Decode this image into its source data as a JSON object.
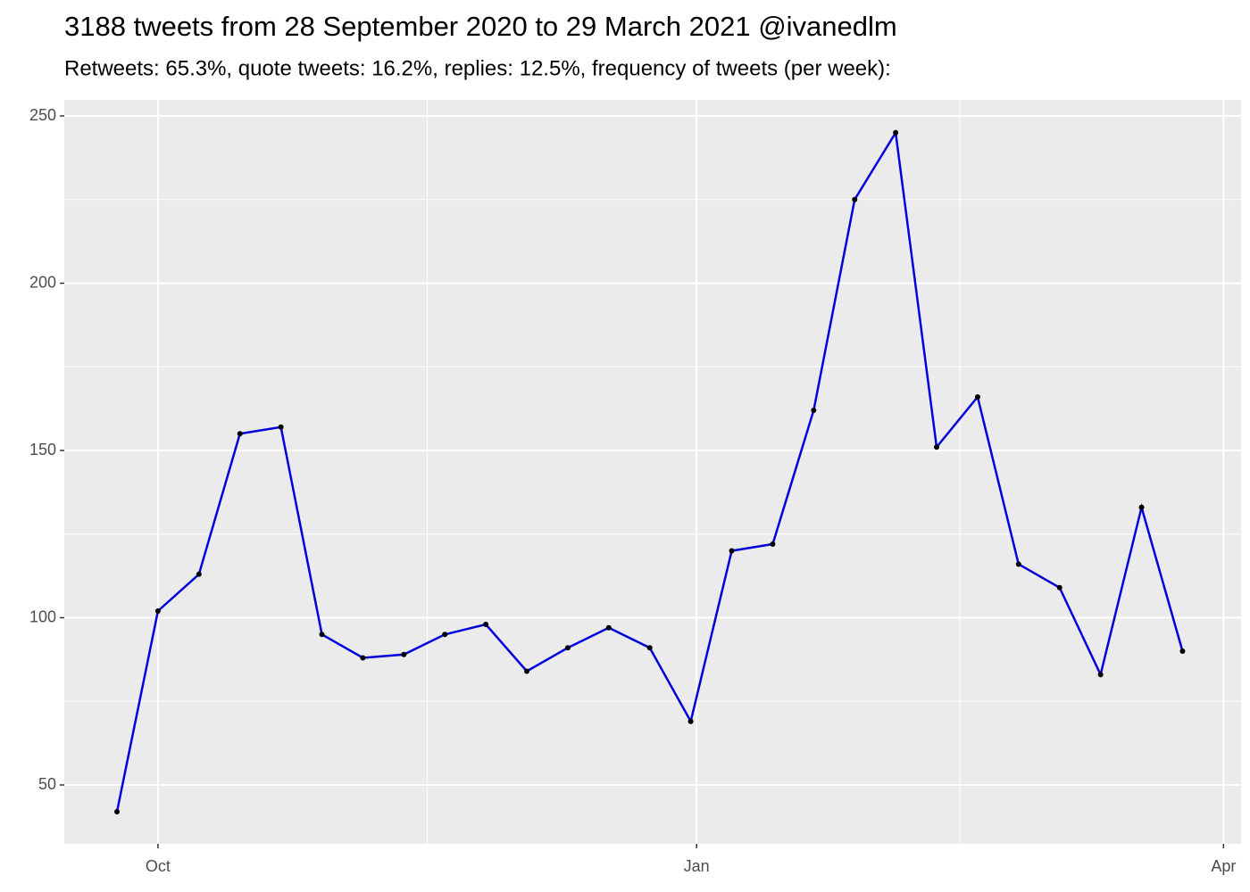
{
  "chart_data": {
    "type": "line",
    "title": "3188 tweets from 28 September 2020 to 29 March 2021 @ivanedlm",
    "subtitle": "Retweets: 65.3%, quote tweets: 16.2%, replies: 12.5%, frequency of tweets (per week):",
    "x": [
      "2020-09-24",
      "2020-10-01",
      "2020-10-08",
      "2020-10-15",
      "2020-10-22",
      "2020-10-29",
      "2020-11-05",
      "2020-11-12",
      "2020-11-19",
      "2020-11-26",
      "2020-12-03",
      "2020-12-10",
      "2020-12-17",
      "2020-12-24",
      "2020-12-31",
      "2021-01-07",
      "2021-01-14",
      "2021-01-21",
      "2021-01-28",
      "2021-02-04",
      "2021-02-11",
      "2021-02-18",
      "2021-02-25",
      "2021-03-04",
      "2021-03-11",
      "2021-03-18",
      "2021-03-25"
    ],
    "series": [
      {
        "color": "#0000dd",
        "values": [
          42,
          102,
          113,
          155,
          157,
          95,
          88,
          89,
          95,
          98,
          84,
          91,
          97,
          91,
          69,
          120,
          122,
          162,
          225,
          245,
          151,
          166,
          116,
          109,
          83,
          133,
          90
        ]
      }
    ],
    "xlim": [
      "2020-09-15",
      "2021-04-04"
    ],
    "xticks": [
      {
        "value": "2020-10-01",
        "label": "Oct"
      },
      {
        "value": "2021-01-01",
        "label": "Jan"
      },
      {
        "value": "2021-04-01",
        "label": "Apr"
      }
    ],
    "ylim": [
      32.4,
      254.8
    ],
    "yticks": [
      50,
      100,
      150,
      200,
      250
    ],
    "grid": true
  }
}
